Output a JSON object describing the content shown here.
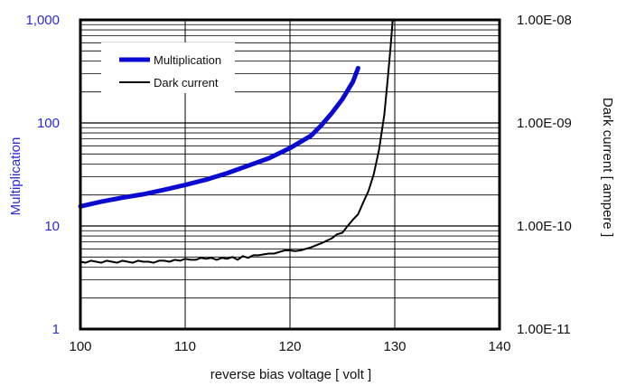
{
  "chart_data": {
    "type": "line",
    "xlabel": "reverse bias voltage [ volt ]",
    "ylabel_left": "Multiplication",
    "ylabel_right": "Dark current [ ampere ]",
    "xlim": [
      100,
      140
    ],
    "ylim_left": [
      1,
      1000
    ],
    "ylim_right": [
      1e-11,
      1e-08
    ],
    "y_scale": "log",
    "x_ticks": [
      "100",
      "110",
      "120",
      "130",
      "140"
    ],
    "y_ticks_left": [
      "1",
      "10",
      "100",
      "1,000"
    ],
    "y_ticks_right": [
      "1.00E-11",
      "1.00E-10",
      "1.00E-09",
      "1.00E-08"
    ],
    "grid": true,
    "legend_position": "top-left",
    "colors": {
      "multiplication": "#0a0ad0",
      "dark_current": "#000000",
      "left_axis_labels": "#2a2ad8"
    },
    "series": [
      {
        "name": "Multiplication",
        "axis": "left",
        "x": [
          100,
          102,
          104,
          106,
          108,
          110,
          112,
          114,
          116,
          118,
          120,
          122,
          123,
          124,
          125,
          126,
          126.5
        ],
        "values": [
          15.5,
          17.2,
          18.8,
          20.3,
          22.5,
          25.0,
          28.2,
          32.5,
          38.5,
          45.5,
          57.0,
          75.0,
          95.0,
          125.0,
          170.0,
          250.0,
          340.0
        ]
      },
      {
        "name": "Dark current",
        "axis": "right",
        "x": [
          100,
          100.5,
          101,
          101.5,
          102,
          102.5,
          103,
          103.5,
          104,
          104.5,
          105,
          105.5,
          106,
          106.5,
          107,
          107.5,
          108,
          108.5,
          109,
          109.5,
          110,
          110.5,
          111,
          111.5,
          112,
          112.5,
          113,
          113.5,
          114,
          114.5,
          115,
          115.5,
          116,
          116.5,
          117,
          117.5,
          118,
          118.5,
          119,
          119.5,
          120,
          120.5,
          121,
          121.5,
          122,
          122.5,
          123,
          123.5,
          124,
          124.5,
          125,
          125.5,
          126,
          126.5,
          127,
          127.5,
          128,
          128.5,
          129,
          129.3,
          129.6,
          129.8
        ],
        "values": [
          4.5e-11,
          4.4e-11,
          4.6e-11,
          4.5e-11,
          4.4e-11,
          4.6e-11,
          4.5e-11,
          4.4e-11,
          4.6e-11,
          4.5e-11,
          4.4e-11,
          4.6e-11,
          4.5e-11,
          4.5e-11,
          4.4e-11,
          4.6e-11,
          4.6e-11,
          4.5e-11,
          4.7e-11,
          4.6e-11,
          4.8e-11,
          4.7e-11,
          4.7e-11,
          4.9e-11,
          4.8e-11,
          4.9e-11,
          4.7e-11,
          4.9e-11,
          4.8e-11,
          5e-11,
          4.7e-11,
          5.1e-11,
          4.9e-11,
          5.2e-11,
          5.2e-11,
          5.3e-11,
          5.4e-11,
          5.4e-11,
          5.6e-11,
          5.8e-11,
          5.8e-11,
          5.7e-11,
          5.8e-11,
          6e-11,
          6.2e-11,
          6.5e-11,
          6.8e-11,
          7.2e-11,
          7.6e-11,
          8.3e-11,
          8.6e-11,
          1e-10,
          1.15e-10,
          1.3e-10,
          1.7e-10,
          2.2e-10,
          3.2e-10,
          5.5e-10,
          1.2e-09,
          2.5e-09,
          5.5e-09,
          1e-08
        ]
      }
    ]
  }
}
